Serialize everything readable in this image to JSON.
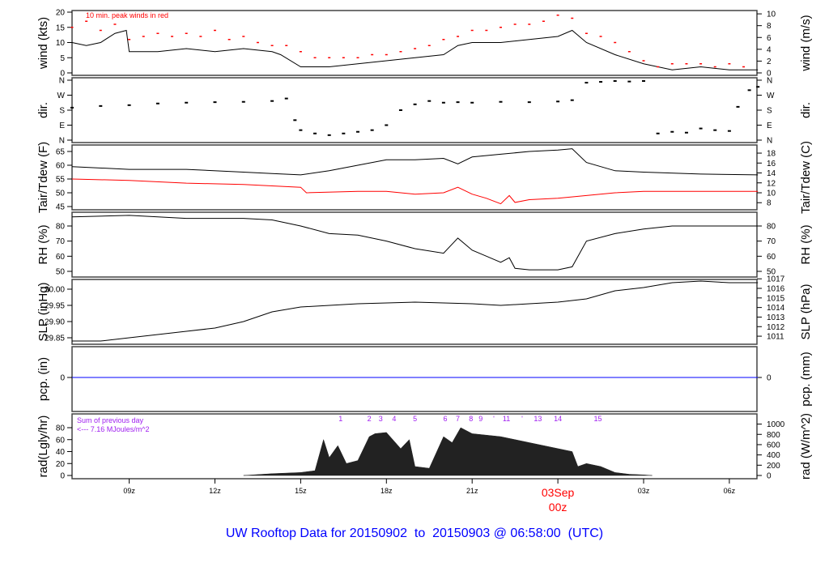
{
  "footer_title": "UW Rooftop Data for 20150902  to  20150903 @ 06:58:00  (UTC)",
  "chart_data": {
    "type": "line",
    "x_unit": "hours since 07z 02Sep (UTC)",
    "x_ticks": [
      {
        "h": 2,
        "label": "09z"
      },
      {
        "h": 5,
        "label": "12z"
      },
      {
        "h": 8,
        "label": "15z"
      },
      {
        "h": 11,
        "label": "18z"
      },
      {
        "h": 14,
        "label": "21z"
      },
      {
        "h": 17,
        "label": "00z",
        "date": "03Sep"
      },
      {
        "h": 20,
        "label": "03z"
      },
      {
        "h": 23,
        "label": "06z"
      }
    ],
    "colors": {
      "main": "#000000",
      "gust": "#ff0000",
      "dew": "#ff0000",
      "pcp": "#0000ff",
      "note": "#a020f0",
      "date": "#ff0000"
    },
    "panels": [
      {
        "id": "wind",
        "ylabel": "wind (kts)",
        "ylabel_right": "wind (m/s)",
        "left_ticks": [
          "0",
          "5",
          "10",
          "15",
          "20"
        ],
        "right_ticks": [
          "0",
          "2",
          "4",
          "6",
          "8",
          "10"
        ],
        "annotation": "10 min. peak winds in red",
        "series": [
          {
            "name": "wind",
            "x": [
              0,
              0.5,
              1,
              1.5,
              1.9,
              2,
              3,
              4,
              5,
              6,
              7,
              7.3,
              8,
              9,
              10,
              11,
              12,
              13,
              13.5,
              14,
              15,
              16,
              17,
              17.5,
              18,
              19,
              20,
              21,
              22,
              23,
              24
            ],
            "y": [
              10,
              9,
              10,
              13,
              14,
              7,
              7,
              8,
              7,
              8,
              7,
              6,
              2,
              2,
              3,
              4,
              5,
              6,
              9,
              10,
              10,
              11,
              12,
              14,
              10,
              6,
              3,
              1,
              2,
              1,
              1
            ]
          },
          {
            "name": "gust",
            "x": [
              0,
              0.5,
              1,
              1.5,
              2,
              2.5,
              3,
              3.5,
              4,
              4.5,
              5,
              5.5,
              6,
              6.5,
              7,
              7.5,
              8,
              8.5,
              9,
              9.5,
              10,
              10.5,
              11,
              11.5,
              12,
              12.5,
              13,
              13.5,
              14,
              14.5,
              15,
              15.5,
              16,
              16.5,
              17,
              17.5,
              18,
              18.5,
              19,
              19.5,
              20,
              20.5,
              21,
              21.5,
              22,
              22.5,
              23,
              23.5
            ],
            "y": [
              15,
              17,
              14,
              16,
              11,
              12,
              13,
              12,
              13,
              12,
              14,
              11,
              12,
              10,
              9,
              9,
              7,
              5,
              5,
              5,
              5,
              6,
              6,
              7,
              8,
              9,
              11,
              12,
              14,
              14,
              15,
              16,
              16,
              17,
              19,
              18,
              13,
              12,
              10,
              7,
              4,
              2,
              3,
              3,
              3,
              2,
              3,
              2
            ]
          }
        ]
      },
      {
        "id": "dir",
        "ylabel": "dir.",
        "ylabel_right": "dir.",
        "left_ticks": [
          "N",
          "E",
          "S",
          "W",
          "N"
        ],
        "right_ticks": [
          "N",
          "E",
          "S",
          "W",
          "N"
        ],
        "series": [
          {
            "name": "direction_deg",
            "x": [
              0,
              1,
              2,
              3,
              4,
              5,
              6,
              7,
              7.5,
              7.8,
              8,
              8.5,
              9,
              9.5,
              10,
              10.5,
              11,
              11.5,
              12,
              12.5,
              13,
              13.5,
              14,
              15,
              16,
              17,
              17.5,
              18,
              18.5,
              19,
              19.5,
              20,
              20.5,
              21,
              21.5,
              22,
              22.5,
              23,
              23.3,
              23.7,
              24
            ],
            "y": [
              195,
              205,
              210,
              220,
              225,
              228,
              230,
              235,
              250,
              120,
              60,
              40,
              30,
              40,
              50,
              60,
              90,
              180,
              215,
              235,
              225,
              228,
              225,
              230,
              228,
              232,
              240,
              345,
              350,
              355,
              352,
              355,
              40,
              50,
              45,
              70,
              60,
              55,
              200,
              300,
              320
            ]
          }
        ]
      },
      {
        "id": "temp",
        "ylabel": "Tair/Tdew (F)",
        "ylabel_right": "Tair/Tdew (C)",
        "left_ticks": [
          "45",
          "50",
          "55",
          "60",
          "65"
        ],
        "right_ticks": [
          "8",
          "10",
          "12",
          "14",
          "16",
          "18"
        ],
        "series": [
          {
            "name": "Tair",
            "x": [
              0,
              2,
              4,
              6,
              7,
              8,
              9,
              10,
              11,
              12,
              13,
              13.5,
              14,
              15,
              16,
              17,
              17.5,
              18,
              19,
              20,
              22,
              24
            ],
            "y": [
              59.5,
              58.5,
              58.5,
              57.5,
              57,
              56.5,
              58,
              60,
              62,
              62,
              62.5,
              60.5,
              63,
              64,
              65,
              65.5,
              66,
              61,
              58,
              57.5,
              56.8,
              56.5
            ]
          },
          {
            "name": "Tdew",
            "x": [
              0,
              2,
              4,
              6,
              7,
              8,
              8.2,
              10,
              11,
              12,
              13,
              13.5,
              14,
              14.5,
              15,
              15.3,
              15.5,
              16,
              17,
              18,
              19,
              20,
              22,
              24
            ],
            "y": [
              55,
              54.5,
              53.5,
              53,
              52.5,
              52,
              50,
              50.5,
              50.5,
              49.5,
              50,
              52,
              49.5,
              48,
              46,
              49,
              46.5,
              47.5,
              48,
              49,
              50,
              50.5,
              50.5,
              50.5
            ]
          }
        ]
      },
      {
        "id": "rh",
        "ylabel": "RH (%)",
        "ylabel_right": "RH (%)",
        "left_ticks": [
          "50",
          "60",
          "70",
          "80"
        ],
        "right_ticks": [
          "50",
          "60",
          "70",
          "80"
        ],
        "series": [
          {
            "name": "RH",
            "x": [
              0,
              2,
              4,
              6,
              7,
              8,
              9,
              10,
              11,
              12,
              13,
              13.5,
              14,
              14.5,
              15,
              15.3,
              15.5,
              16,
              17,
              17.5,
              18,
              19,
              20,
              21,
              22,
              23,
              24
            ],
            "y": [
              86,
              87,
              85,
              85,
              84,
              80,
              75,
              74,
              70,
              65,
              62,
              72,
              64,
              60,
              56,
              59,
              52,
              51,
              51,
              53,
              70,
              75,
              78,
              80,
              80,
              80,
              80
            ]
          }
        ]
      },
      {
        "id": "slp",
        "ylabel": "SLP (inHg)",
        "ylabel_right": "SLP (hPa)",
        "left_ticks": [
          "29.85",
          "29.90",
          "29.95",
          "30.00"
        ],
        "right_ticks": [
          "1011",
          "1012",
          "1013",
          "1014",
          "1015",
          "1016",
          "1017"
        ],
        "series": [
          {
            "name": "SLP",
            "x": [
              0,
              1,
              2,
              4,
              5,
              6,
              7,
              8,
              10,
              12,
              14,
              15,
              16,
              17,
              18,
              19,
              20,
              21,
              22,
              23,
              24
            ],
            "y": [
              29.84,
              29.84,
              29.85,
              29.87,
              29.88,
              29.9,
              29.93,
              29.945,
              29.955,
              29.96,
              29.955,
              29.95,
              29.955,
              29.96,
              29.97,
              29.995,
              30.005,
              30.02,
              30.025,
              30.02,
              30.02
            ]
          }
        ]
      },
      {
        "id": "pcp",
        "ylabel": "pcp. (in)",
        "ylabel_right": "pcp. (mm)",
        "left_ticks": [
          "0"
        ],
        "right_ticks": [
          "0"
        ],
        "series": [
          {
            "name": "pcp",
            "x": [
              0,
              24
            ],
            "y": [
              0,
              0
            ]
          }
        ]
      },
      {
        "id": "rad",
        "ylabel": "rad(Lgly/hr)",
        "ylabel_right": "rad (W/m^2)",
        "left_ticks": [
          "0",
          "20",
          "40",
          "60",
          "80"
        ],
        "right_ticks": [
          "0",
          "200",
          "400",
          "600",
          "800",
          "1000"
        ],
        "note_lines": [
          "Sum of previous day",
          "<--- 7.16 MJoules/m^2"
        ],
        "hour_marks": [
          {
            "h": 9.4,
            "label": "1"
          },
          {
            "h": 10.4,
            "label": "2"
          },
          {
            "h": 10.8,
            "label": "3"
          },
          {
            "h": 11.27,
            "label": "4"
          },
          {
            "h": 12.0,
            "label": "5"
          },
          {
            "h": 13.06,
            "label": "6"
          },
          {
            "h": 13.5,
            "label": "7"
          },
          {
            "h": 13.96,
            "label": "8"
          },
          {
            "h": 14.3,
            "label": "9"
          },
          {
            "h": 14.76,
            "label": "'"
          },
          {
            "h": 15.2,
            "label": "11"
          },
          {
            "h": 15.75,
            "label": "'"
          },
          {
            "h": 16.3,
            "label": "13"
          },
          {
            "h": 17.0,
            "label": "14"
          },
          {
            "h": 18.4,
            "label": "15"
          }
        ],
        "series": [
          {
            "name": "rad",
            "x": [
              6,
              7,
              8,
              8.5,
              8.8,
              9,
              9.3,
              9.6,
              10,
              10.4,
              10.6,
              11,
              11.5,
              11.8,
              12,
              12.5,
              13,
              13.3,
              13.6,
              14,
              15,
              16,
              17,
              17.5,
              17.7,
              18,
              18.5,
              19,
              19.5,
              20,
              20.3
            ],
            "y": [
              0,
              3,
              5,
              8,
              60,
              30,
              50,
              20,
              25,
              65,
              70,
              72,
              45,
              60,
              15,
              12,
              65,
              55,
              80,
              70,
              65,
              55,
              45,
              40,
              15,
              20,
              15,
              5,
              2,
              1,
              0
            ]
          }
        ]
      }
    ]
  }
}
